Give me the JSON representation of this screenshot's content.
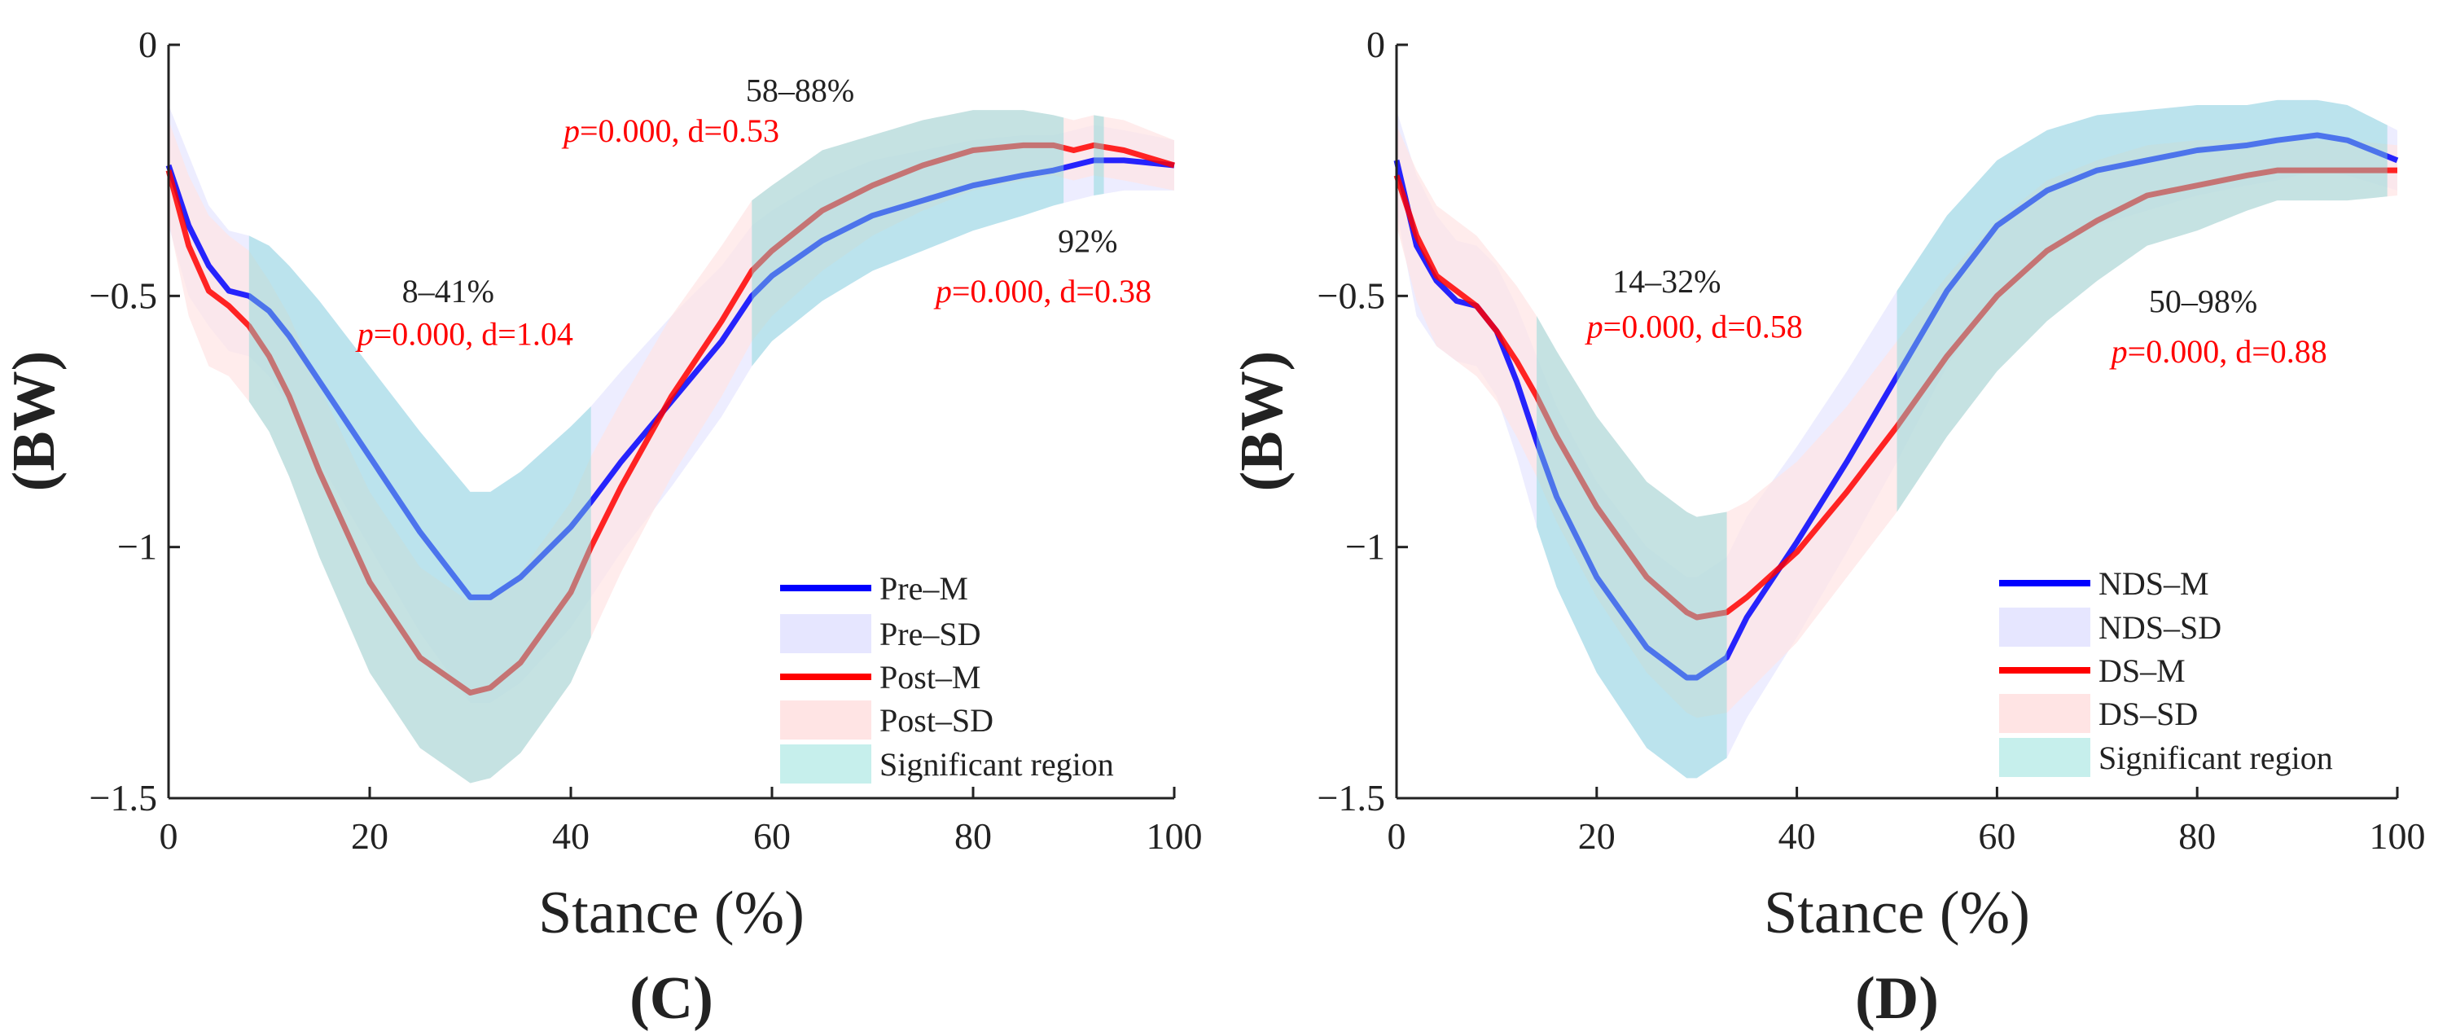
{
  "chart_data": [
    {
      "type": "line",
      "panel_label": "(C)",
      "xlabel": "Stance (%)",
      "ylabel": "(BW)",
      "xlim": [
        0,
        100
      ],
      "ylim": [
        -1.5,
        0
      ],
      "xticks": [
        0,
        20,
        40,
        60,
        80,
        100
      ],
      "xtick_labels": [
        "0",
        "20",
        "40",
        "60",
        "80",
        "100"
      ],
      "yticks": [
        0,
        -0.5,
        -1,
        -1.5
      ],
      "ytick_labels": [
        "0",
        "−0.5",
        "−1",
        "−1.5"
      ],
      "x": [
        0,
        2,
        4,
        6,
        8,
        10,
        12,
        15,
        20,
        25,
        30,
        32,
        35,
        40,
        42,
        45,
        50,
        55,
        58,
        60,
        65,
        70,
        75,
        80,
        85,
        88,
        90,
        92,
        95,
        100
      ],
      "series": [
        {
          "name": "Pre–M",
          "color": "#0000ff",
          "values": [
            -0.24,
            -0.36,
            -0.44,
            -0.49,
            -0.5,
            -0.53,
            -0.58,
            -0.67,
            -0.82,
            -0.97,
            -1.1,
            -1.1,
            -1.06,
            -0.96,
            -0.91,
            -0.83,
            -0.71,
            -0.59,
            -0.5,
            -0.46,
            -0.39,
            -0.34,
            -0.31,
            -0.28,
            -0.26,
            -0.25,
            -0.24,
            -0.23,
            -0.23,
            -0.24
          ],
          "sd_name": "Pre–SD",
          "sd_color": "#e6e6ff",
          "sd": [
            0.12,
            0.14,
            0.12,
            0.12,
            0.12,
            0.13,
            0.14,
            0.16,
            0.18,
            0.2,
            0.21,
            0.21,
            0.21,
            0.2,
            0.19,
            0.18,
            0.17,
            0.15,
            0.14,
            0.13,
            0.12,
            0.11,
            0.1,
            0.09,
            0.08,
            0.07,
            0.07,
            0.07,
            0.06,
            0.05
          ]
        },
        {
          "name": "Post–M",
          "color": "#ff0000",
          "values": [
            -0.25,
            -0.4,
            -0.49,
            -0.52,
            -0.56,
            -0.62,
            -0.7,
            -0.85,
            -1.07,
            -1.22,
            -1.29,
            -1.28,
            -1.23,
            -1.09,
            -1.0,
            -0.88,
            -0.7,
            -0.55,
            -0.45,
            -0.41,
            -0.33,
            -0.28,
            -0.24,
            -0.21,
            -0.2,
            -0.2,
            -0.21,
            -0.2,
            -0.21,
            -0.24
          ],
          "sd_name": "Post–SD",
          "sd_color": "#ffe4e4",
          "sd": [
            0.1,
            0.14,
            0.15,
            0.14,
            0.15,
            0.15,
            0.16,
            0.17,
            0.18,
            0.18,
            0.18,
            0.18,
            0.18,
            0.18,
            0.18,
            0.17,
            0.16,
            0.15,
            0.14,
            0.13,
            0.12,
            0.1,
            0.09,
            0.08,
            0.07,
            0.06,
            0.06,
            0.06,
            0.06,
            0.05
          ]
        }
      ],
      "significant_label": "Significant region",
      "significant_color": "#7fd8d8",
      "significant_regions": [
        [
          8,
          42
        ],
        [
          58,
          89
        ],
        [
          92,
          93
        ]
      ],
      "annotations": [
        {
          "range": "8–41%",
          "p_symbol": "p",
          "stat": "=0.000, d=1.04"
        },
        {
          "range": "58–88%",
          "p_symbol": "p",
          "stat": "=0.000, d=0.53"
        },
        {
          "range": "92%",
          "p_symbol": "p",
          "stat": "=0.000, d=0.38"
        }
      ]
    },
    {
      "type": "line",
      "panel_label": "(D)",
      "xlabel": "Stance (%)",
      "ylabel": "(BW)",
      "xlim": [
        0,
        100
      ],
      "ylim": [
        -1.5,
        0
      ],
      "xticks": [
        0,
        20,
        40,
        60,
        80,
        100
      ],
      "xtick_labels": [
        "0",
        "20",
        "40",
        "60",
        "80",
        "100"
      ],
      "yticks": [
        0,
        -0.5,
        -1,
        -1.5
      ],
      "ytick_labels": [
        "0",
        "−0.5",
        "−1",
        "−1.5"
      ],
      "x": [
        0,
        2,
        4,
        6,
        8,
        10,
        12,
        14,
        16,
        20,
        25,
        29,
        30,
        33,
        35,
        40,
        45,
        50,
        55,
        60,
        65,
        70,
        75,
        80,
        85,
        88,
        92,
        95,
        100
      ],
      "series": [
        {
          "name": "NDS–M",
          "color": "#0000ff",
          "values": [
            -0.23,
            -0.4,
            -0.47,
            -0.51,
            -0.52,
            -0.57,
            -0.67,
            -0.79,
            -0.9,
            -1.06,
            -1.2,
            -1.26,
            -1.26,
            -1.22,
            -1.14,
            -0.99,
            -0.83,
            -0.66,
            -0.49,
            -0.36,
            -0.29,
            -0.25,
            -0.23,
            -0.21,
            -0.2,
            -0.19,
            -0.18,
            -0.19,
            -0.23
          ],
          "sd_name": "NDS–SD",
          "sd_color": "#e6e6ff",
          "sd": [
            0.1,
            0.14,
            0.13,
            0.12,
            0.12,
            0.13,
            0.15,
            0.17,
            0.18,
            0.19,
            0.2,
            0.2,
            0.2,
            0.2,
            0.2,
            0.19,
            0.18,
            0.17,
            0.15,
            0.13,
            0.12,
            0.11,
            0.1,
            0.09,
            0.08,
            0.08,
            0.07,
            0.07,
            0.06
          ]
        },
        {
          "name": "DS–M",
          "color": "#ff0000",
          "values": [
            -0.26,
            -0.38,
            -0.46,
            -0.49,
            -0.52,
            -0.57,
            -0.63,
            -0.7,
            -0.78,
            -0.92,
            -1.06,
            -1.13,
            -1.14,
            -1.13,
            -1.1,
            -1.01,
            -0.89,
            -0.76,
            -0.62,
            -0.5,
            -0.41,
            -0.35,
            -0.3,
            -0.28,
            -0.26,
            -0.25,
            -0.25,
            -0.25,
            -0.25
          ],
          "sd_name": "DS–SD",
          "sd_color": "#ffe4e4",
          "sd": [
            0.1,
            0.13,
            0.14,
            0.14,
            0.14,
            0.14,
            0.15,
            0.16,
            0.17,
            0.18,
            0.19,
            0.2,
            0.2,
            0.2,
            0.19,
            0.18,
            0.17,
            0.17,
            0.16,
            0.15,
            0.14,
            0.12,
            0.1,
            0.09,
            0.07,
            0.06,
            0.06,
            0.06,
            0.05
          ]
        }
      ],
      "significant_label": "Significant region",
      "significant_color": "#7fd8d8",
      "significant_regions": [
        [
          14,
          33
        ],
        [
          50,
          99
        ]
      ],
      "annotations": [
        {
          "range": "14–32%",
          "p_symbol": "p",
          "stat": "=0.000, d=0.58"
        },
        {
          "range": "50–98%",
          "p_symbol": "p",
          "stat": "=0.000, d=0.88"
        }
      ]
    }
  ]
}
